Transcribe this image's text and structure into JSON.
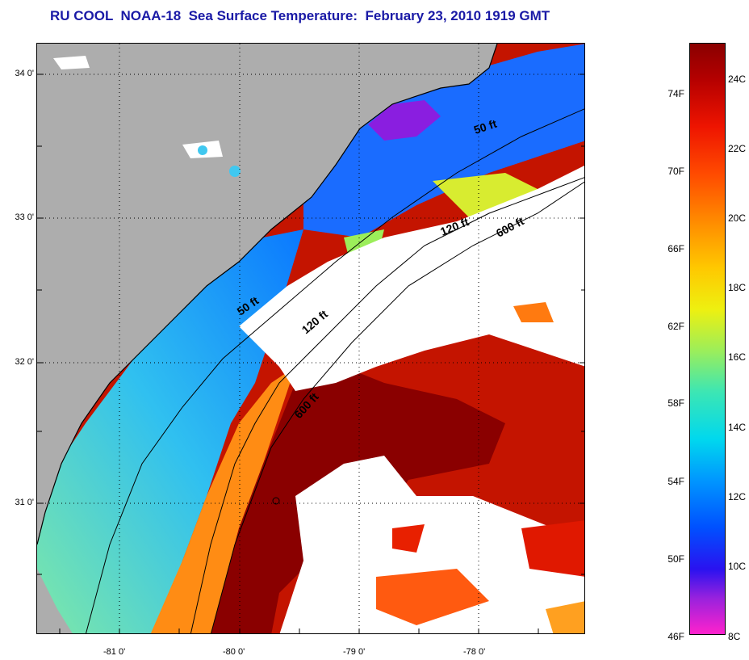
{
  "title": "RU COOL  NOAA-18  Sea Surface Temperature:  February 23, 2010 1919 GMT",
  "map": {
    "lat_labels": [
      "34 0'",
      "33 0'",
      "32 0'",
      "31 0'"
    ],
    "lon_labels": [
      "-81 0'",
      "-80 0'",
      "-79 0'",
      "-78 0'"
    ],
    "isobath_labels": {
      "ft50_a": "50 ft",
      "ft50_b": "50 ft",
      "ft120_a": "120 ft",
      "ft120_b": "120 ft",
      "ft600_a": "600 ft",
      "ft600_b": "600 ft"
    },
    "colors": {
      "land": "#adadad",
      "cloud": "#ffffff"
    }
  },
  "colorbar": {
    "f_labels": [
      "74F",
      "70F",
      "66F",
      "62F",
      "58F",
      "54F",
      "50F",
      "46F"
    ],
    "c_labels": [
      "24C",
      "22C",
      "20C",
      "18C",
      "16C",
      "14C",
      "12C",
      "10C",
      "8C"
    ]
  }
}
